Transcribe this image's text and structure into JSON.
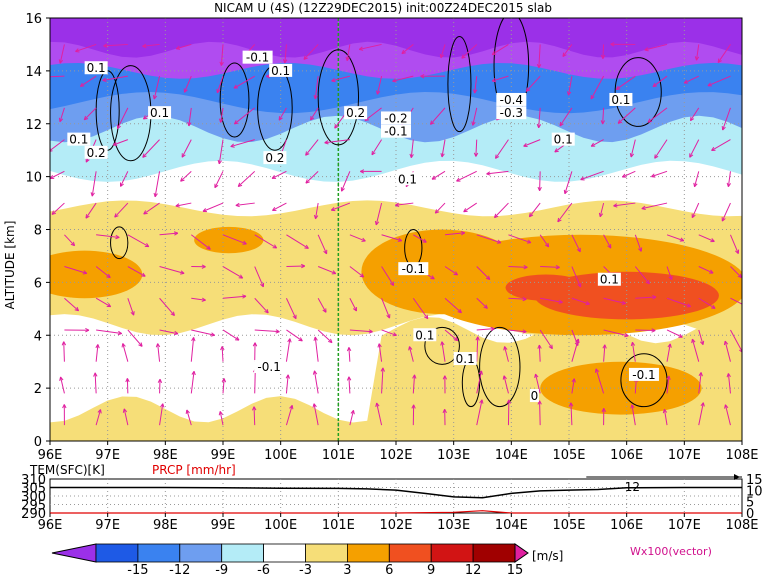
{
  "title": "NICAM U (4S) (12Z29DEC2015) init:00Z24DEC2015 slab",
  "chart_data": [
    {
      "type": "heatmap",
      "title": "NICAM U (4S) (12Z29DEC2015) init:00Z24DEC2015 slab",
      "xlabel": "",
      "ylabel": "ALTITUDE [km]",
      "xlim": [
        96,
        108
      ],
      "ylim": [
        0,
        16
      ],
      "x_ticks": [
        "96E",
        "97E",
        "98E",
        "99E",
        "100E",
        "101E",
        "102E",
        "103E",
        "104E",
        "105E",
        "106E",
        "107E",
        "108E"
      ],
      "y_ticks": [
        "0",
        "2",
        "4",
        "6",
        "8",
        "10",
        "12",
        "14",
        "16"
      ],
      "grid": true,
      "marker_longitude": 101,
      "shading_bands": [
        {
          "alt_range": [
            14,
            16
          ],
          "u_range": [
            -15,
            -12
          ],
          "color": "#9b30e8"
        },
        {
          "alt_range": [
            12,
            14
          ],
          "u_range": [
            -9,
            -6
          ],
          "color": "#6e9ef0"
        },
        {
          "alt_range": [
            10.5,
            12
          ],
          "u_range": [
            -3,
            3
          ],
          "color": "#b4ecf7"
        },
        {
          "alt_range": [
            5,
            9
          ],
          "u_range": [
            3,
            6
          ],
          "color": "#f6de78"
        },
        {
          "alt_range": [
            4,
            7
          ],
          "u_range": [
            6,
            9
          ],
          "color": "#f5a000"
        },
        {
          "alt_range": [
            5,
            6.5
          ],
          "u_range": [
            9,
            12
          ],
          "color": "#f05020"
        },
        {
          "alt_range": [
            0,
            3
          ],
          "u_range": [
            3,
            6
          ],
          "color": "#f6de78"
        }
      ],
      "contour_labels": [
        {
          "text": "-0.1",
          "lon": 99.6,
          "alt": 14.5
        },
        {
          "text": "0.1",
          "lon": 96.8,
          "alt": 14.1
        },
        {
          "text": "0.1",
          "lon": 100.0,
          "alt": 14.0
        },
        {
          "text": "0.1",
          "lon": 97.9,
          "alt": 12.4
        },
        {
          "text": "0.1",
          "lon": 96.5,
          "alt": 11.4
        },
        {
          "text": "0.2",
          "lon": 96.8,
          "alt": 10.9
        },
        {
          "text": "0.2",
          "lon": 99.9,
          "alt": 10.7
        },
        {
          "text": "0.2",
          "lon": 101.3,
          "alt": 12.4
        },
        {
          "text": "-0.2",
          "lon": 102.0,
          "alt": 12.2
        },
        {
          "text": "-0.1",
          "lon": 102.0,
          "alt": 11.7
        },
        {
          "text": "-0.4",
          "lon": 104.0,
          "alt": 12.9
        },
        {
          "text": "-0.3",
          "lon": 104.0,
          "alt": 12.4
        },
        {
          "text": "0.1",
          "lon": 105.9,
          "alt": 12.9
        },
        {
          "text": "0.1",
          "lon": 104.9,
          "alt": 11.4
        },
        {
          "text": "0.1",
          "lon": 102.2,
          "alt": 9.9
        },
        {
          "text": "-0.1",
          "lon": 102.3,
          "alt": 6.5
        },
        {
          "text": "0.1",
          "lon": 105.7,
          "alt": 6.1
        },
        {
          "text": "0.1",
          "lon": 102.5,
          "alt": 4.0
        },
        {
          "text": "0.1",
          "lon": 103.2,
          "alt": 3.1
        },
        {
          "text": "-0.1",
          "lon": 99.8,
          "alt": 2.8
        },
        {
          "text": "-0.1",
          "lon": 106.3,
          "alt": 2.5
        },
        {
          "text": "0",
          "lon": 104.4,
          "alt": 1.7
        }
      ]
    },
    {
      "type": "line",
      "xlim": [
        96,
        108
      ],
      "left_axis_label": "TEM(SFC)[K]",
      "right_axis_label": "PRCP [mm/hr]",
      "left_ticks": [
        "290",
        "295",
        "300",
        "305",
        "310"
      ],
      "right_ticks": [
        "0",
        "5",
        "10",
        "15"
      ],
      "x_ticks": [
        "96E",
        "97E",
        "98E",
        "99E",
        "100E",
        "101E",
        "102E",
        "103E",
        "104E",
        "105E",
        "106E",
        "107E",
        "108E"
      ],
      "series": [
        {
          "name": "TEM(SFC)[K]",
          "color": "#000000",
          "x": [
            96,
            97,
            98,
            99,
            100,
            101,
            101.5,
            102,
            102.5,
            103,
            103.5,
            104,
            104.5,
            105,
            105.5,
            106,
            107,
            108
          ],
          "y": [
            305,
            305,
            305,
            304.8,
            304.6,
            304.5,
            304.2,
            303.5,
            301.5,
            299.5,
            299,
            301.5,
            303,
            303.5,
            303.8,
            304.8,
            305,
            305
          ]
        },
        {
          "name": "PRCP [mm/hr]",
          "color": "#e00000",
          "x": [
            96,
            102,
            103,
            103.5,
            103.8,
            104,
            105,
            108
          ],
          "y": [
            0,
            0,
            0.3,
            1,
            0.4,
            0,
            0,
            0
          ]
        }
      ],
      "annotation": "12"
    }
  ],
  "colorbar": {
    "ticks": [
      "-15",
      "-12",
      "-9",
      "-6",
      "-3",
      "3",
      "6",
      "9",
      "12",
      "15"
    ],
    "colors": [
      "#9b30e8",
      "#1e5ae6",
      "#3a82f0",
      "#6e9ef0",
      "#b4ecf7",
      "#ffffff",
      "#f6de78",
      "#f5a000",
      "#f05020",
      "#d21414",
      "#a00000",
      "#e020a0"
    ],
    "unit": "[m/s]",
    "vector_label": "Wx100(vector)"
  }
}
